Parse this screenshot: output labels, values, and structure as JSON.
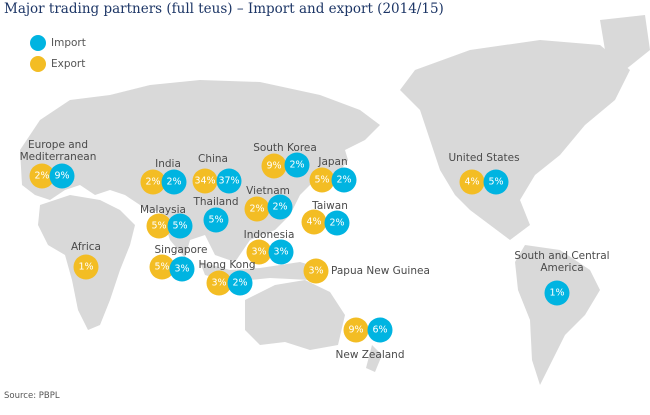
{
  "title": "Major trading partners (full teus) – Import and export (2014/15)",
  "legend": {
    "import": "Import",
    "export": "Export"
  },
  "colors": {
    "import": "#00b4e1",
    "export": "#f3bd24",
    "land": "#d9d9d9",
    "title": "#1d3666"
  },
  "partners": [
    {
      "id": "europe",
      "name": "Europe and Mediterranean",
      "export": "2%",
      "import": "9%"
    },
    {
      "id": "india",
      "name": "India",
      "export": "2%",
      "import": "2%"
    },
    {
      "id": "china",
      "name": "China",
      "export": "34%",
      "import": "37%"
    },
    {
      "id": "south-korea",
      "name": "South Korea",
      "export": "9%",
      "import": "2%"
    },
    {
      "id": "japan",
      "name": "Japan",
      "export": "5%",
      "import": "2%"
    },
    {
      "id": "vietnam",
      "name": "Vietnam",
      "export": "2%",
      "import": "2%"
    },
    {
      "id": "thailand",
      "name": "Thailand",
      "import": "5%"
    },
    {
      "id": "malaysia",
      "name": "Malaysia",
      "export": "5%",
      "import": "5%"
    },
    {
      "id": "taiwan",
      "name": "Taiwan",
      "export": "4%",
      "import": "2%"
    },
    {
      "id": "indonesia",
      "name": "Indonesia",
      "export": "3%",
      "import": "3%"
    },
    {
      "id": "singapore",
      "name": "Singapore",
      "export": "5%",
      "import": "3%"
    },
    {
      "id": "hong-kong",
      "name": "Hong Kong",
      "export": "3%",
      "import": "2%"
    },
    {
      "id": "papua-new-guinea",
      "name": "Papua New Guinea",
      "export": "3%"
    },
    {
      "id": "africa",
      "name": "Africa",
      "export": "1%"
    },
    {
      "id": "new-zealand",
      "name": "New Zealand",
      "export": "9%",
      "import": "6%"
    },
    {
      "id": "united-states",
      "name": "United States",
      "export": "4%",
      "import": "5%"
    },
    {
      "id": "south-central-america",
      "name": "South and Central America",
      "import": "1%"
    }
  ],
  "source": "Source: PBPL"
}
